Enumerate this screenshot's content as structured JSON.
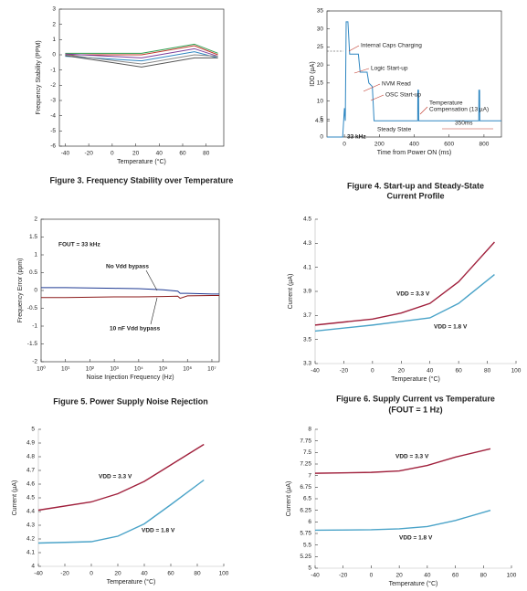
{
  "chart_data": [
    {
      "type": "line",
      "caption": [
        "Figure 3. Frequency Stability over Temperature"
      ],
      "xlabel": "Temperature (°C)",
      "ylabel": "Frequency Stability (PPM)",
      "x": [
        -40,
        25,
        70,
        90
      ],
      "xlim": [
        -45,
        95
      ],
      "xticks": [
        -40,
        -20,
        0,
        20,
        40,
        60,
        80
      ],
      "ylim": [
        -6,
        3
      ],
      "yticks": [
        -6,
        -5,
        -4,
        -3,
        -2,
        -1,
        0,
        1,
        2,
        3
      ],
      "frame": true,
      "annotations": [],
      "series": [
        {
          "color": "#2a9d4a",
          "values": [
            0.1,
            0.1,
            0.7,
            0.1
          ]
        },
        {
          "color": "#c0392b",
          "values": [
            0.0,
            0.0,
            0.6,
            0.0
          ]
        },
        {
          "color": "#7d3c98",
          "values": [
            0.05,
            -0.2,
            0.4,
            -0.1
          ]
        },
        {
          "color": "#2e86c1",
          "values": [
            -0.1,
            -0.4,
            0.2,
            -0.2
          ]
        },
        {
          "color": "#888888",
          "values": [
            0.0,
            -0.6,
            0.0,
            -0.1
          ]
        },
        {
          "color": "#555555",
          "values": [
            -0.05,
            -0.8,
            -0.2,
            -0.2
          ]
        }
      ]
    },
    {
      "type": "line",
      "caption": [
        "Figure 4. Start-up and Steady-State",
        "Current Profile"
      ],
      "xlabel": "Time from Power ON (ms)",
      "ylabel": "IDD (µA)",
      "x": [
        -100,
        -10,
        0,
        5,
        10,
        20,
        30,
        40,
        80,
        90,
        130,
        140,
        160,
        170,
        180,
        420,
        421,
        425,
        426,
        770,
        771,
        775,
        776,
        900
      ],
      "xlim": [
        -100,
        900
      ],
      "xticks": [
        0,
        200,
        400,
        600,
        800
      ],
      "ylim": [
        0,
        35
      ],
      "yticks": [
        0,
        4.5,
        5,
        10,
        15,
        20,
        25,
        30,
        35
      ],
      "frame": true,
      "annotations": [
        "Internal Caps Charging",
        "Logic Start-up",
        "NVM Read",
        "OSC Start-up",
        "Temperature",
        "Compensation (13 µA)",
        "350ms",
        "Steady State",
        "33 kHz"
      ],
      "series": [
        {
          "color": "#2e86c1",
          "values": [
            0,
            0,
            8,
            4.5,
            32,
            32,
            23,
            23,
            23,
            18,
            18,
            15,
            14,
            4.5,
            4.5,
            4.5,
            13,
            13,
            4.5,
            4.5,
            13,
            13,
            4.5,
            4.5
          ]
        }
      ]
    },
    {
      "type": "line",
      "caption": [
        "Figure 5. Power Supply Noise Rejection"
      ],
      "xlabel": "Noise Injection Frequency (Hz)",
      "ylabel": "Frequency Error (ppm)",
      "xscale": "log",
      "x": [
        1,
        10,
        100,
        1000,
        10000,
        100000,
        400000,
        500000,
        1000000,
        10000000,
        20000000
      ],
      "xlim": [
        1,
        20000000
      ],
      "xticks": [
        {
          "value": 1,
          "label": "10⁰"
        },
        {
          "value": 10,
          "label": "10¹"
        },
        {
          "value": 100,
          "label": "10²"
        },
        {
          "value": 1000,
          "label": "10³"
        },
        {
          "value": 10000,
          "label": "10⁴"
        },
        {
          "value": 100000,
          "label": "10⁵"
        },
        {
          "value": 1000000,
          "label": "10⁶"
        },
        {
          "value": 10000000,
          "label": "10⁷"
        }
      ],
      "ylim": [
        -2,
        2
      ],
      "yticks": [
        -2,
        -1.5,
        -1,
        -0.5,
        0,
        0.5,
        1,
        1.5,
        2
      ],
      "frame": true,
      "annotations": [
        "FOUT = 33 kHz",
        "No Vdd bypass",
        "10 nF Vdd bypass"
      ],
      "series": [
        {
          "color": "#1f3a93",
          "values": [
            0.08,
            0.08,
            0.07,
            0.06,
            0.05,
            0.02,
            -0.02,
            -0.08,
            -0.08,
            -0.1,
            -0.1
          ]
        },
        {
          "color": "#8b1a1a",
          "values": [
            -0.2,
            -0.2,
            -0.19,
            -0.18,
            -0.18,
            -0.17,
            -0.16,
            -0.22,
            -0.15,
            -0.14,
            -0.14
          ]
        }
      ]
    },
    {
      "type": "line",
      "caption": [
        "Figure 6. Supply Current vs Temperature",
        "(FOUT = 1 Hz)"
      ],
      "xlabel": "Temperature (°C)",
      "ylabel": "Current (µA)",
      "x": [
        -40,
        0,
        20,
        40,
        60,
        85
      ],
      "xlim": [
        -40,
        100
      ],
      "xticks": [
        -40,
        -20,
        0,
        20,
        40,
        60,
        80,
        100
      ],
      "ylim": [
        3.3,
        4.5
      ],
      "yticks": [
        3.3,
        3.5,
        3.7,
        3.9,
        4.1,
        4.3,
        4.5
      ],
      "frame": false,
      "annotations": [
        "VDD = 3.3 V",
        "VDD = 1.8 V"
      ],
      "series": [
        {
          "color": "#a0203c",
          "values": [
            3.62,
            3.67,
            3.72,
            3.8,
            3.98,
            4.31
          ]
        },
        {
          "color": "#4aa3c8",
          "values": [
            3.57,
            3.62,
            3.65,
            3.68,
            3.8,
            4.04
          ]
        }
      ]
    },
    {
      "type": "line",
      "caption": [],
      "xlabel": "Temperature (°C)",
      "ylabel": "Current (µA)",
      "x": [
        -40,
        0,
        20,
        40,
        60,
        85
      ],
      "xlim": [
        -40,
        100
      ],
      "xticks": [
        -40,
        -20,
        0,
        20,
        40,
        60,
        80,
        100
      ],
      "ylim": [
        4,
        5
      ],
      "yticks": [
        4,
        4.1,
        4.2,
        4.3,
        4.4,
        4.5,
        4.6,
        4.7,
        4.8,
        4.9,
        5
      ],
      "frame": false,
      "annotations": [
        "VDD = 3.3 V",
        "VDD = 1.8 V"
      ],
      "series": [
        {
          "color": "#a0203c",
          "values": [
            4.41,
            4.47,
            4.53,
            4.62,
            4.74,
            4.89
          ]
        },
        {
          "color": "#4aa3c8",
          "values": [
            4.17,
            4.18,
            4.22,
            4.31,
            4.45,
            4.63
          ]
        }
      ]
    },
    {
      "type": "line",
      "caption": [],
      "xlabel": "Temperature (°C)",
      "ylabel": "Current (µA)",
      "x": [
        -40,
        0,
        20,
        40,
        60,
        85
      ],
      "xlim": [
        -40,
        100
      ],
      "xticks": [
        -40,
        -20,
        0,
        20,
        40,
        60,
        80,
        100
      ],
      "ylim": [
        5,
        8
      ],
      "yticks": [
        5,
        5.25,
        5.5,
        5.75,
        6,
        6.25,
        6.5,
        6.75,
        7,
        7.25,
        7.5,
        7.75,
        8
      ],
      "frame": false,
      "annotations": [
        "VDD = 3.3 V",
        "VDD = 1.8 V"
      ],
      "series": [
        {
          "color": "#a0203c",
          "values": [
            7.05,
            7.07,
            7.1,
            7.22,
            7.4,
            7.58
          ]
        },
        {
          "color": "#4aa3c8",
          "values": [
            5.82,
            5.83,
            5.85,
            5.9,
            6.03,
            6.25
          ]
        }
      ]
    }
  ]
}
